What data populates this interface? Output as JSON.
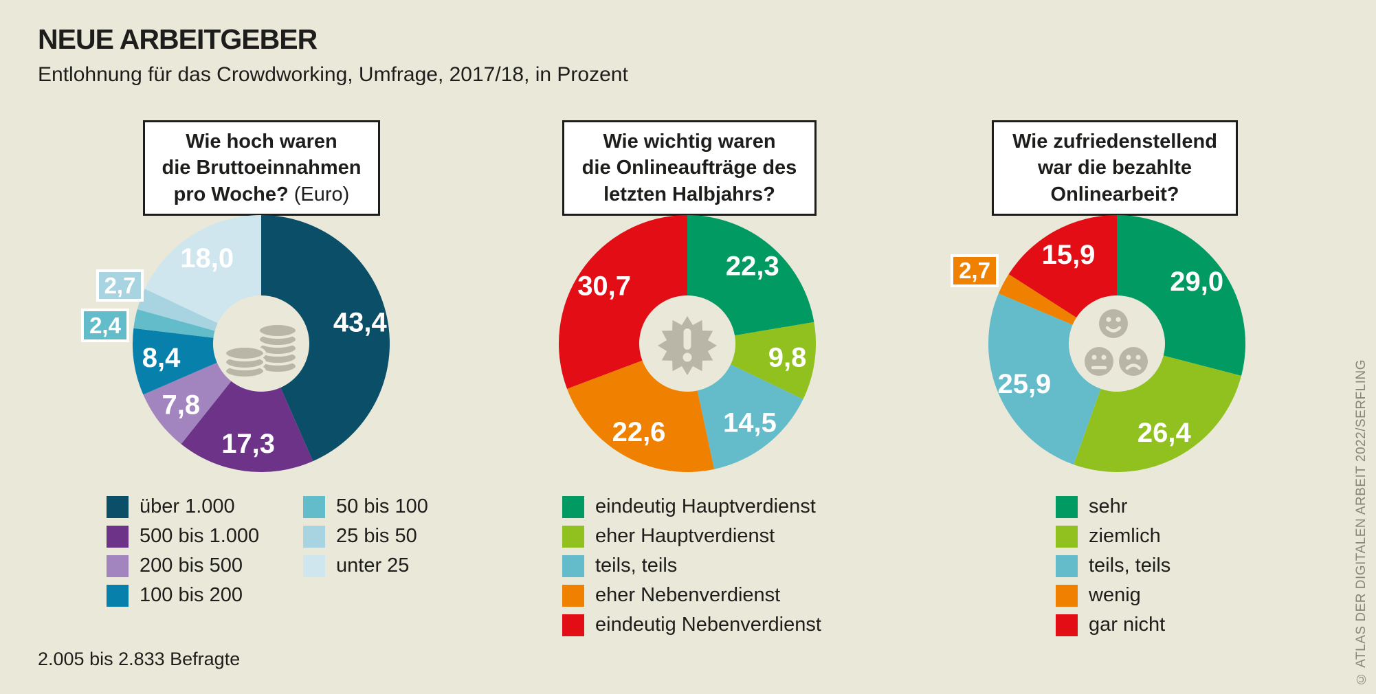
{
  "header": {
    "title": "NEUE ARBEITGEBER",
    "subtitle": "Entlohnung für das Crowdworking, Umfrage, 2017/18, in Prozent"
  },
  "footer": {
    "note": "2.005 bis 2.833 Befragte",
    "credit": "© ATLAS DER DIGITALEN ARBEIT 2022/SERFLING"
  },
  "colors": {
    "background": "#eae8d9",
    "text": "#1d1d1b",
    "icon_gray": "#b9b5a7",
    "credit_gray": "#87877b",
    "value_label": "#ffffff"
  },
  "icons": {
    "chart1_center": "coins-icon",
    "chart2_center": "alert-starburst-icon",
    "chart3_center": "smileys-icon"
  },
  "chart_data": [
    {
      "type": "pie",
      "donut": true,
      "start_angle_deg": 0,
      "question": {
        "line1": "Wie hoch waren",
        "line2": "die Bruttoeinnahmen",
        "line3": "pro Woche?",
        "suffix": "(Euro)"
      },
      "legend_columns": 2,
      "slices": [
        {
          "legend": "über 1.000",
          "value": 43.4,
          "display": "43,4",
          "color": "#0b4e68",
          "label": "inside"
        },
        {
          "legend": "500 bis 1.000",
          "value": 17.3,
          "display": "17,3",
          "color": "#6d3389",
          "label": "inside"
        },
        {
          "legend": "200 bis 500",
          "value": 7.8,
          "display": "7,8",
          "color": "#a284be",
          "label": "inside"
        },
        {
          "legend": "100 bis 200",
          "value": 8.4,
          "display": "8,4",
          "color": "#0781ac",
          "label": "inside"
        },
        {
          "legend": "50 bis 100",
          "value": 2.4,
          "display": "2,4",
          "color": "#62bcca",
          "label": "outside"
        },
        {
          "legend": "25 bis 50",
          "value": 2.7,
          "display": "2,7",
          "color": "#a8d3e1",
          "label": "outside"
        },
        {
          "legend": "unter 25",
          "value": 18.0,
          "display": "18,0",
          "color": "#cfe6ee",
          "label": "inside"
        }
      ]
    },
    {
      "type": "pie",
      "donut": true,
      "start_angle_deg": 0,
      "question": {
        "line1": "Wie wichtig waren",
        "line2": "die Onlineaufträge des",
        "line3": "letzten Halbjahrs?",
        "suffix": ""
      },
      "legend_columns": 1,
      "slices": [
        {
          "legend": "eindeutig Hauptverdienst",
          "value": 22.3,
          "display": "22,3",
          "color": "#009a62",
          "label": "inside"
        },
        {
          "legend": "eher Hauptverdienst",
          "value": 9.8,
          "display": "9,8",
          "color": "#91c11f",
          "label": "inside"
        },
        {
          "legend": "teils, teils",
          "value": 14.5,
          "display": "14,5",
          "color": "#64bcca",
          "label": "inside"
        },
        {
          "legend": "eher Nebenverdienst",
          "value": 22.6,
          "display": "22,6",
          "color": "#ef8000",
          "label": "inside"
        },
        {
          "legend": "eindeutig Nebenverdienst",
          "value": 30.7,
          "display": "30,7",
          "color": "#e30d15",
          "label": "inside"
        }
      ]
    },
    {
      "type": "pie",
      "donut": true,
      "start_angle_deg": 0,
      "question": {
        "line1": "Wie zufriedenstellend",
        "line2": "war die bezahlte",
        "line3": "Onlinearbeit?",
        "suffix": ""
      },
      "legend_columns": 1,
      "slices": [
        {
          "legend": "sehr",
          "value": 29.0,
          "display": "29,0",
          "color": "#009a62",
          "label": "inside"
        },
        {
          "legend": "ziemlich",
          "value": 26.4,
          "display": "26,4",
          "color": "#91c11f",
          "label": "inside"
        },
        {
          "legend": "teils, teils",
          "value": 25.9,
          "display": "25,9",
          "color": "#64bcca",
          "label": "inside"
        },
        {
          "legend": "wenig",
          "value": 2.7,
          "display": "2,7",
          "color": "#ef8000",
          "label": "outside"
        },
        {
          "legend": "gar nicht",
          "value": 15.9,
          "display": "15,9",
          "color": "#e30d15",
          "label": "inside"
        }
      ]
    }
  ]
}
